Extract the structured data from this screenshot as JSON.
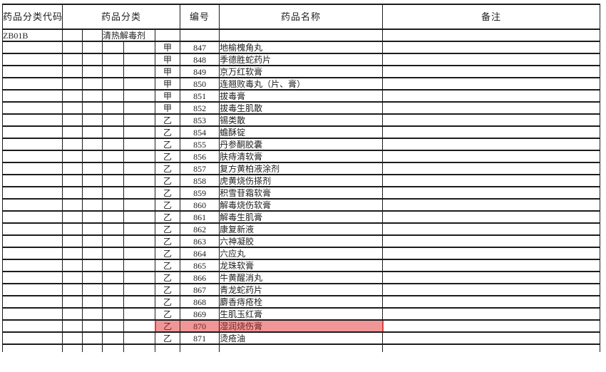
{
  "document": {
    "header": {
      "code": "药品分类代码",
      "category": "药品分类",
      "number": "编号",
      "name": "药品名称",
      "remarks": "备注"
    },
    "category_row": {
      "code": "ZB01B",
      "category_name": "清热解毒剂"
    },
    "rows": [
      {
        "cls": "甲",
        "no": "847",
        "name": "地榆槐角丸",
        "highlighted": false
      },
      {
        "cls": "甲",
        "no": "848",
        "name": "季德胜蛇药片",
        "highlighted": false
      },
      {
        "cls": "甲",
        "no": "849",
        "name": "京万红软膏",
        "highlighted": false
      },
      {
        "cls": "甲",
        "no": "850",
        "name": "连翘败毒丸（片、膏）",
        "highlighted": false
      },
      {
        "cls": "甲",
        "no": "851",
        "name": "拔毒膏",
        "highlighted": false
      },
      {
        "cls": "甲",
        "no": "852",
        "name": "拔毒生肌散",
        "highlighted": false
      },
      {
        "cls": "乙",
        "no": "853",
        "name": "锡类散",
        "highlighted": false
      },
      {
        "cls": "乙",
        "no": "854",
        "name": "蟾酥锭",
        "highlighted": false
      },
      {
        "cls": "乙",
        "no": "855",
        "name": "丹参酮胶囊",
        "highlighted": false
      },
      {
        "cls": "乙",
        "no": "856",
        "name": "肤痔清软膏",
        "highlighted": false
      },
      {
        "cls": "乙",
        "no": "857",
        "name": "复方黄柏液涂剂",
        "highlighted": false
      },
      {
        "cls": "乙",
        "no": "858",
        "name": "虎黄烧伤搽剂",
        "highlighted": false
      },
      {
        "cls": "乙",
        "no": "859",
        "name": "积雪苷霜软膏",
        "highlighted": false
      },
      {
        "cls": "乙",
        "no": "860",
        "name": "解毒烧伤软膏",
        "highlighted": false
      },
      {
        "cls": "乙",
        "no": "861",
        "name": "解毒生肌膏",
        "highlighted": false
      },
      {
        "cls": "乙",
        "no": "862",
        "name": "康复新液",
        "highlighted": false
      },
      {
        "cls": "乙",
        "no": "863",
        "name": "六神凝胶",
        "highlighted": false
      },
      {
        "cls": "乙",
        "no": "864",
        "name": "六应丸",
        "highlighted": false
      },
      {
        "cls": "乙",
        "no": "865",
        "name": "龙珠软膏",
        "highlighted": false
      },
      {
        "cls": "乙",
        "no": "866",
        "name": "牛黄醒消丸",
        "highlighted": false
      },
      {
        "cls": "乙",
        "no": "867",
        "name": "青龙蛇药片",
        "highlighted": false
      },
      {
        "cls": "乙",
        "no": "868",
        "name": "麝香痔疮栓",
        "highlighted": false
      },
      {
        "cls": "乙",
        "no": "869",
        "name": "生肌玉红膏",
        "highlighted": false
      },
      {
        "cls": "乙",
        "no": "870",
        "name": "湿润烧伤膏",
        "highlighted": true
      },
      {
        "cls": "乙",
        "no": "871",
        "name": "烫疮油",
        "highlighted": false
      }
    ],
    "highlight": {
      "row_no": "870",
      "fill": "#f19697",
      "border": "#dc4040",
      "text_color": "#6e2422"
    },
    "colors": {
      "border": "#1c1c1c",
      "text": "#1f1f1f",
      "background": "#ffffff"
    }
  }
}
